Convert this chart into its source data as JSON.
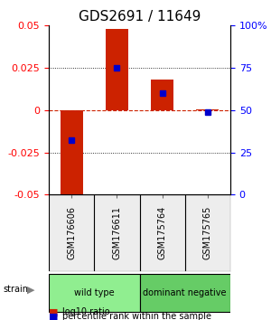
{
  "title": "GDS2691 / 11649",
  "samples": [
    "GSM176606",
    "GSM176611",
    "GSM175764",
    "GSM175765"
  ],
  "log10_ratio": [
    -0.051,
    0.048,
    0.018,
    0.0005
  ],
  "percentile_rank": [
    32,
    75,
    60,
    49
  ],
  "groups": [
    {
      "name": "wild type",
      "samples": [
        0,
        1
      ],
      "color": "#90ee90"
    },
    {
      "name": "dominant negative",
      "samples": [
        2,
        3
      ],
      "color": "#66cc66"
    }
  ],
  "group_label": "strain",
  "ylim": [
    -0.05,
    0.05
  ],
  "yticks_left": [
    -0.05,
    -0.025,
    0,
    0.025,
    0.05
  ],
  "yticks_right": [
    0,
    25,
    50,
    75,
    100
  ],
  "bar_color": "#cc2200",
  "dot_color": "#0000cc",
  "zero_line_color": "#cc2200",
  "grid_color": "#000000",
  "title_fontsize": 11,
  "tick_fontsize": 8,
  "label_fontsize": 8
}
